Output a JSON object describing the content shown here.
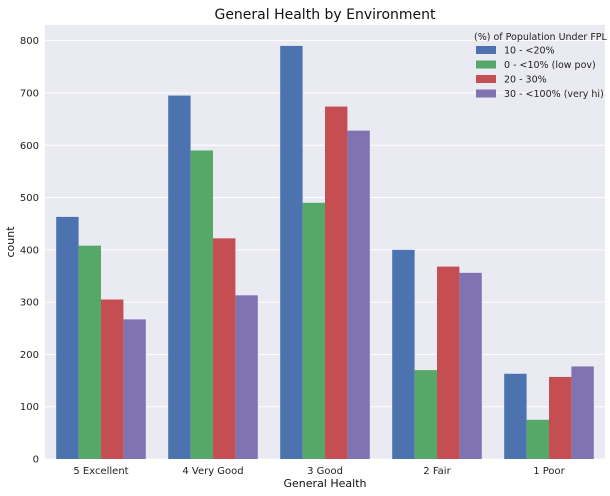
{
  "chart_data": {
    "type": "bar",
    "title": "General Health by Environment",
    "xlabel": "General Health",
    "ylabel": "count",
    "categories": [
      "5 Excellent",
      "4 Very Good",
      "3 Good",
      "2 Fair",
      "1 Poor"
    ],
    "ylim": [
      0,
      830
    ],
    "yticks": [
      "0",
      "100",
      "200",
      "300",
      "400",
      "500",
      "600",
      "700",
      "800"
    ],
    "grid": true,
    "legend": {
      "title": "(%) of Population Under FPL",
      "placement": "top-right"
    },
    "series": [
      {
        "name": "10 - <20%",
        "color": "#4C72B0",
        "values": [
          463,
          695,
          790,
          400,
          163
        ]
      },
      {
        "name": "0 - <10% (low pov)",
        "color": "#55A868",
        "values": [
          408,
          590,
          490,
          170,
          75
        ]
      },
      {
        "name": "20 - 30%",
        "color": "#C44E52",
        "values": [
          305,
          422,
          674,
          368,
          157
        ]
      },
      {
        "name": "30 - <100% (very hi)",
        "color": "#8172B2",
        "values": [
          267,
          313,
          628,
          356,
          177
        ]
      }
    ],
    "background_color": "#EAEAF2",
    "grid_color": "#FFFFFF"
  }
}
